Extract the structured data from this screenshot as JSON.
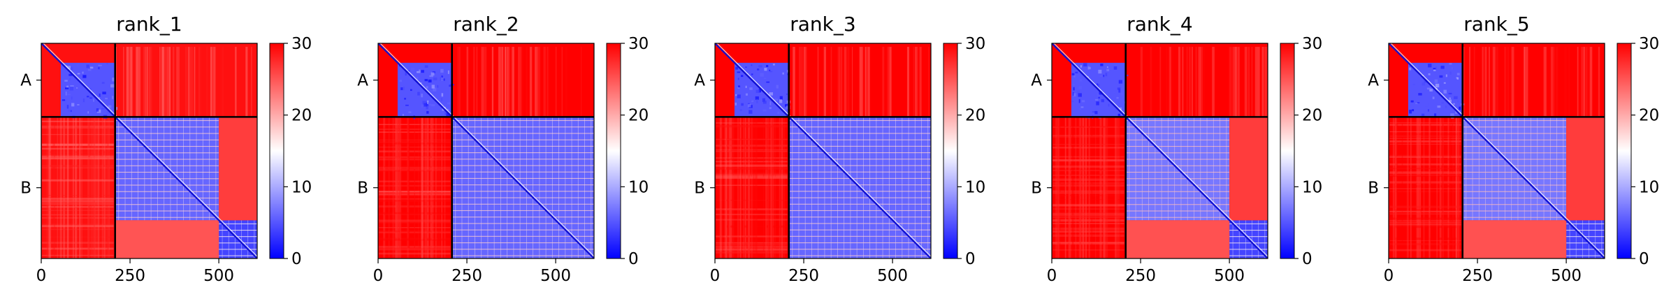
{
  "chart_data": [
    {
      "type": "heatmap",
      "title": "rank_1",
      "xticks": [
        0,
        250,
        500
      ],
      "xlim": [
        0,
        608
      ],
      "chains": [
        {
          "label": "A",
          "length": 208
        },
        {
          "label": "B",
          "length": 400
        }
      ],
      "colorbar": {
        "min": 0,
        "max": 30,
        "ticks": [
          0,
          10,
          20,
          30
        ],
        "colors": [
          "#0000ff",
          "#ffffff",
          "#ff0000"
        ]
      },
      "domains_B": [
        {
          "end": 500,
          "mean_error": 6
        },
        {
          "end": 608,
          "mean_error": 4
        }
      ],
      "interchain_error": 27
    },
    {
      "type": "heatmap",
      "title": "rank_2",
      "xticks": [
        0,
        250,
        500
      ],
      "xlim": [
        0,
        608
      ],
      "chains": [
        {
          "label": "A",
          "length": 208
        },
        {
          "label": "B",
          "length": 400
        }
      ],
      "colorbar": {
        "min": 0,
        "max": 30,
        "ticks": [
          0,
          10,
          20,
          30
        ],
        "colors": [
          "#0000ff",
          "#ffffff",
          "#ff0000"
        ]
      },
      "domains_B": [
        {
          "end": 608,
          "mean_error": 6
        }
      ],
      "interchain_error": 28
    },
    {
      "type": "heatmap",
      "title": "rank_3",
      "xticks": [
        0,
        250,
        500
      ],
      "xlim": [
        0,
        608
      ],
      "chains": [
        {
          "label": "A",
          "length": 208
        },
        {
          "label": "B",
          "length": 400
        }
      ],
      "colorbar": {
        "min": 0,
        "max": 30,
        "ticks": [
          0,
          10,
          20,
          30
        ],
        "colors": [
          "#0000ff",
          "#ffffff",
          "#ff0000"
        ]
      },
      "domains_B": [
        {
          "end": 608,
          "mean_error": 6
        }
      ],
      "interchain_error": 28
    },
    {
      "type": "heatmap",
      "title": "rank_4",
      "xticks": [
        0,
        250,
        500
      ],
      "xlim": [
        0,
        608
      ],
      "chains": [
        {
          "label": "A",
          "length": 208
        },
        {
          "label": "B",
          "length": 400
        }
      ],
      "colorbar": {
        "min": 0,
        "max": 30,
        "ticks": [
          0,
          10,
          20,
          30
        ],
        "colors": [
          "#0000ff",
          "#ffffff",
          "#ff0000"
        ]
      },
      "domains_B": [
        {
          "end": 500,
          "mean_error": 7
        },
        {
          "end": 608,
          "mean_error": 4
        }
      ],
      "interchain_error": 29
    },
    {
      "type": "heatmap",
      "title": "rank_5",
      "xticks": [
        0,
        250,
        500
      ],
      "xlim": [
        0,
        608
      ],
      "chains": [
        {
          "label": "A",
          "length": 208
        },
        {
          "label": "B",
          "length": 400
        }
      ],
      "colorbar": {
        "min": 0,
        "max": 30,
        "ticks": [
          0,
          10,
          20,
          30
        ],
        "colors": [
          "#0000ff",
          "#ffffff",
          "#ff0000"
        ]
      },
      "domains_B": [
        {
          "end": 500,
          "mean_error": 7
        },
        {
          "end": 608,
          "mean_error": 4
        }
      ],
      "interchain_error": 29
    }
  ]
}
